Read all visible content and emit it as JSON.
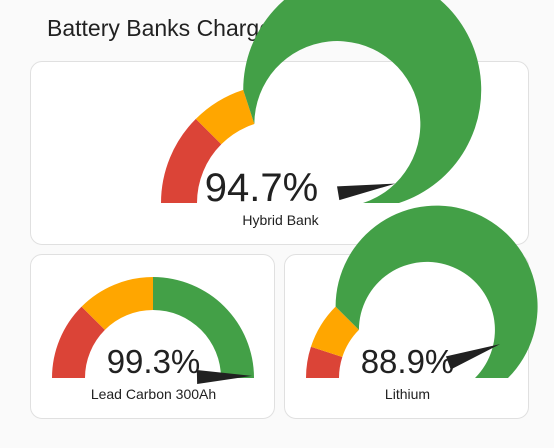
{
  "title": "Battery Banks Charge State",
  "colors": {
    "red": "#db4437",
    "yellow": "#ffa600",
    "green": "#43a047",
    "needle": "#212121"
  },
  "gauges": [
    {
      "name": "Hybrid Bank",
      "value_text": "94.7%",
      "value": 94.7,
      "segments": [
        {
          "from": 0,
          "to": 25,
          "color": "red"
        },
        {
          "from": 25,
          "to": 40,
          "color": "yellow"
        },
        {
          "from": 40,
          "to": 100,
          "color": "green"
        }
      ]
    },
    {
      "name": "Lead Carbon 300Ah",
      "value_text": "99.3%",
      "value": 99.3,
      "segments": [
        {
          "from": 0,
          "to": 25,
          "color": "red"
        },
        {
          "from": 25,
          "to": 50,
          "color": "yellow"
        },
        {
          "from": 50,
          "to": 100,
          "color": "green"
        }
      ]
    },
    {
      "name": "Lithium",
      "value_text": "88.9%",
      "value": 88.9,
      "segments": [
        {
          "from": 0,
          "to": 10,
          "color": "red"
        },
        {
          "from": 10,
          "to": 25,
          "color": "yellow"
        },
        {
          "from": 25,
          "to": 100,
          "color": "green"
        }
      ]
    }
  ]
}
